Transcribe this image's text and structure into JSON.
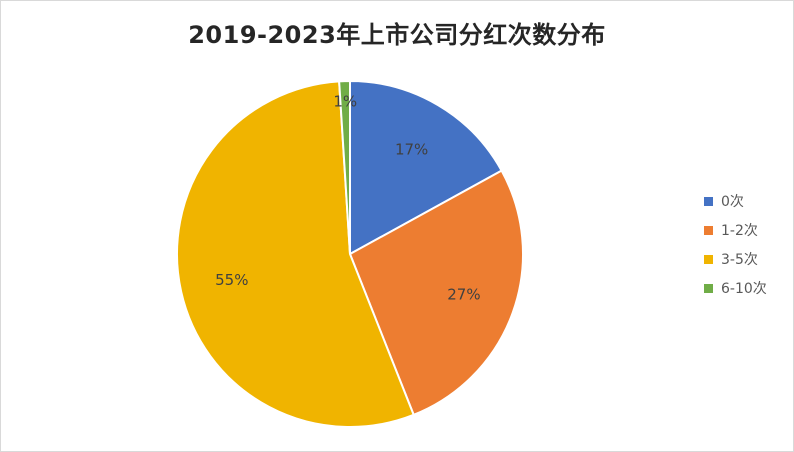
{
  "chart_data": {
    "type": "pie",
    "title": "2019-2023年上市公司分红次数分布",
    "categories": [
      "0次",
      "1-2次",
      "3-5次",
      "6-10次"
    ],
    "values": [
      17,
      27,
      55,
      1
    ],
    "labels": [
      "17%",
      "27%",
      "55%",
      "1%"
    ],
    "colors": [
      "#4472C4",
      "#ED7D31",
      "#F0B400",
      "#70AD47"
    ],
    "legend_position": "right",
    "start_angle": "top, clockwise"
  }
}
